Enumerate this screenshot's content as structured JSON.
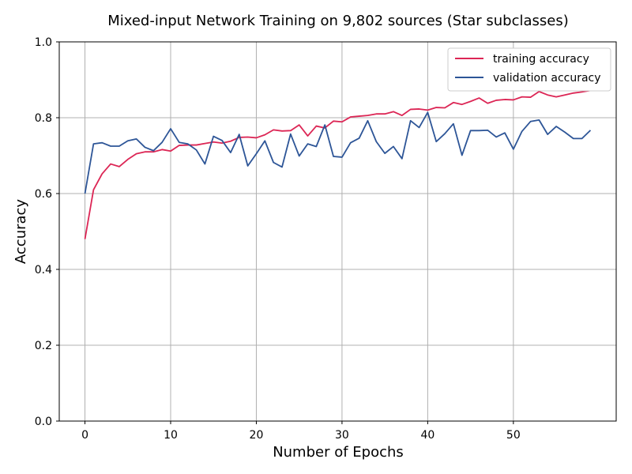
{
  "chart_data": {
    "type": "line",
    "title": "Mixed-input Network Training on 9,802 sources (Star subclasses)",
    "xlabel": "Number of Epochs",
    "ylabel": "Accuracy",
    "xlim": [
      -3,
      62
    ],
    "ylim": [
      0.0,
      1.0
    ],
    "xticks": [
      0,
      10,
      20,
      30,
      40,
      50
    ],
    "yticks": [
      0.0,
      0.2,
      0.4,
      0.6,
      0.8,
      1.0
    ],
    "ytick_labels": [
      "0.0",
      "0.2",
      "0.4",
      "0.6",
      "0.8",
      "1.0"
    ],
    "grid": true,
    "legend_position": "top-right",
    "x": [
      0,
      1,
      2,
      3,
      4,
      5,
      6,
      7,
      8,
      9,
      10,
      11,
      12,
      13,
      14,
      15,
      16,
      17,
      18,
      19,
      20,
      21,
      22,
      23,
      24,
      25,
      26,
      27,
      28,
      29,
      30,
      31,
      32,
      33,
      34,
      35,
      36,
      37,
      38,
      39,
      40,
      41,
      42,
      43,
      44,
      45,
      46,
      47,
      48,
      49,
      50,
      51,
      52,
      53,
      54,
      55,
      56,
      57,
      58,
      59
    ],
    "series": [
      {
        "name": "training accuracy",
        "color": "#dc2655",
        "values": [
          0.48,
          0.61,
          0.652,
          0.678,
          0.671,
          0.69,
          0.705,
          0.71,
          0.71,
          0.716,
          0.712,
          0.727,
          0.728,
          0.728,
          0.732,
          0.736,
          0.733,
          0.738,
          0.748,
          0.749,
          0.747,
          0.755,
          0.768,
          0.765,
          0.766,
          0.781,
          0.752,
          0.778,
          0.773,
          0.791,
          0.789,
          0.802,
          0.804,
          0.806,
          0.81,
          0.81,
          0.816,
          0.806,
          0.822,
          0.823,
          0.82,
          0.827,
          0.826,
          0.84,
          0.835,
          0.843,
          0.852,
          0.838,
          0.846,
          0.848,
          0.847,
          0.855,
          0.854,
          0.869,
          0.86,
          0.855,
          0.86,
          0.865,
          0.868,
          0.872
        ]
      },
      {
        "name": "validation accuracy",
        "color": "#2d5597",
        "values": [
          0.6,
          0.731,
          0.734,
          0.725,
          0.725,
          0.739,
          0.744,
          0.722,
          0.713,
          0.735,
          0.771,
          0.735,
          0.731,
          0.715,
          0.678,
          0.751,
          0.74,
          0.708,
          0.756,
          0.673,
          0.705,
          0.739,
          0.682,
          0.67,
          0.757,
          0.699,
          0.731,
          0.724,
          0.781,
          0.698,
          0.696,
          0.734,
          0.746,
          0.792,
          0.737,
          0.706,
          0.724,
          0.692,
          0.792,
          0.774,
          0.814,
          0.737,
          0.758,
          0.784,
          0.701,
          0.766,
          0.766,
          0.767,
          0.749,
          0.76,
          0.717,
          0.764,
          0.79,
          0.794,
          0.756,
          0.777,
          0.762,
          0.745,
          0.745,
          0.767
        ]
      }
    ]
  }
}
